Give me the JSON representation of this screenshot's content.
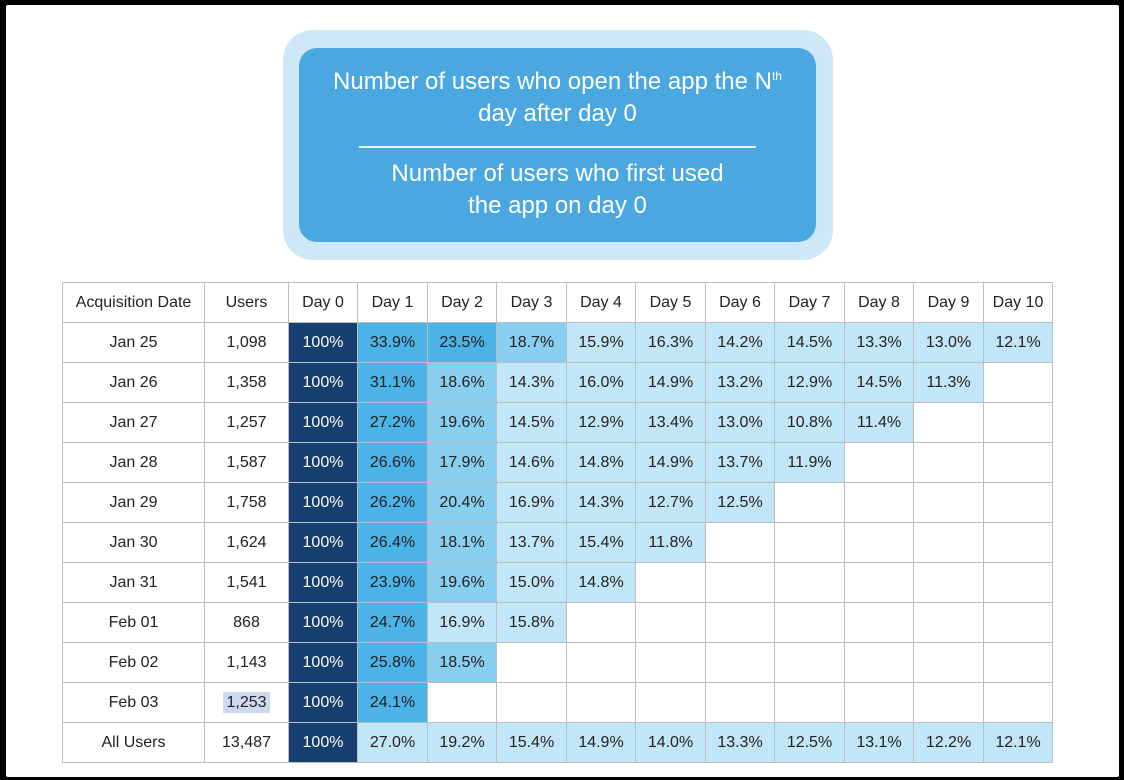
{
  "formula": {
    "numerator_a": "Number of users who open the app the N",
    "numerator_sup": "th",
    "numerator_b": "day after day 0",
    "denominator_a": "Number of users who first used",
    "denominator_b": "the app on day 0"
  },
  "chart_data": {
    "type": "table",
    "columns": [
      "Acquisition Date",
      "Users",
      "Day 0",
      "Day 1",
      "Day 2",
      "Day 3",
      "Day 4",
      "Day 5",
      "Day 6",
      "Day 7",
      "Day 8",
      "Day 9",
      "Day 10"
    ],
    "rows": [
      {
        "date": "Jan 25",
        "users": "1,098",
        "values": [
          "100%",
          "33.9%",
          "23.5%",
          "18.7%",
          "15.9%",
          "16.3%",
          "14.2%",
          "14.5%",
          "13.3%",
          "13.0%",
          "12.1%"
        ]
      },
      {
        "date": "Jan 26",
        "users": "1,358",
        "values": [
          "100%",
          "31.1%",
          "18.6%",
          "14.3%",
          "16.0%",
          "14.9%",
          "13.2%",
          "12.9%",
          "14.5%",
          "11.3%"
        ]
      },
      {
        "date": "Jan 27",
        "users": "1,257",
        "values": [
          "100%",
          "27.2%",
          "19.6%",
          "14.5%",
          "12.9%",
          "13.4%",
          "13.0%",
          "10.8%",
          "11.4%"
        ]
      },
      {
        "date": "Jan 28",
        "users": "1,587",
        "values": [
          "100%",
          "26.6%",
          "17.9%",
          "14.6%",
          "14.8%",
          "14.9%",
          "13.7%",
          "11.9%"
        ]
      },
      {
        "date": "Jan 29",
        "users": "1,758",
        "values": [
          "100%",
          "26.2%",
          "20.4%",
          "16.9%",
          "14.3%",
          "12.7%",
          "12.5%"
        ]
      },
      {
        "date": "Jan 30",
        "users": "1,624",
        "values": [
          "100%",
          "26.4%",
          "18.1%",
          "13.7%",
          "15.4%",
          "11.8%"
        ]
      },
      {
        "date": "Jan 31",
        "users": "1,541",
        "values": [
          "100%",
          "23.9%",
          "19.6%",
          "15.0%",
          "14.8%"
        ]
      },
      {
        "date": "Feb 01",
        "users": "868",
        "values": [
          "100%",
          "24.7%",
          "16.9%",
          "15.8%"
        ]
      },
      {
        "date": "Feb 02",
        "users": "1,143",
        "values": [
          "100%",
          "25.8%",
          "18.5%"
        ]
      },
      {
        "date": "Feb 03",
        "users": "1,253",
        "values": [
          "100%",
          "24.1%"
        ]
      }
    ],
    "total": {
      "date": "All Users",
      "users": "13,487",
      "values": [
        "100%",
        "27.0%",
        "19.2%",
        "15.4%",
        "14.9%",
        "14.0%",
        "13.3%",
        "12.5%",
        "13.1%",
        "12.2%",
        "12.1%"
      ]
    },
    "colors": {
      "day0": "#153f6e",
      "high": "#4bb3e6",
      "mid": "#88ceef",
      "low": "#c1e6f8"
    }
  }
}
